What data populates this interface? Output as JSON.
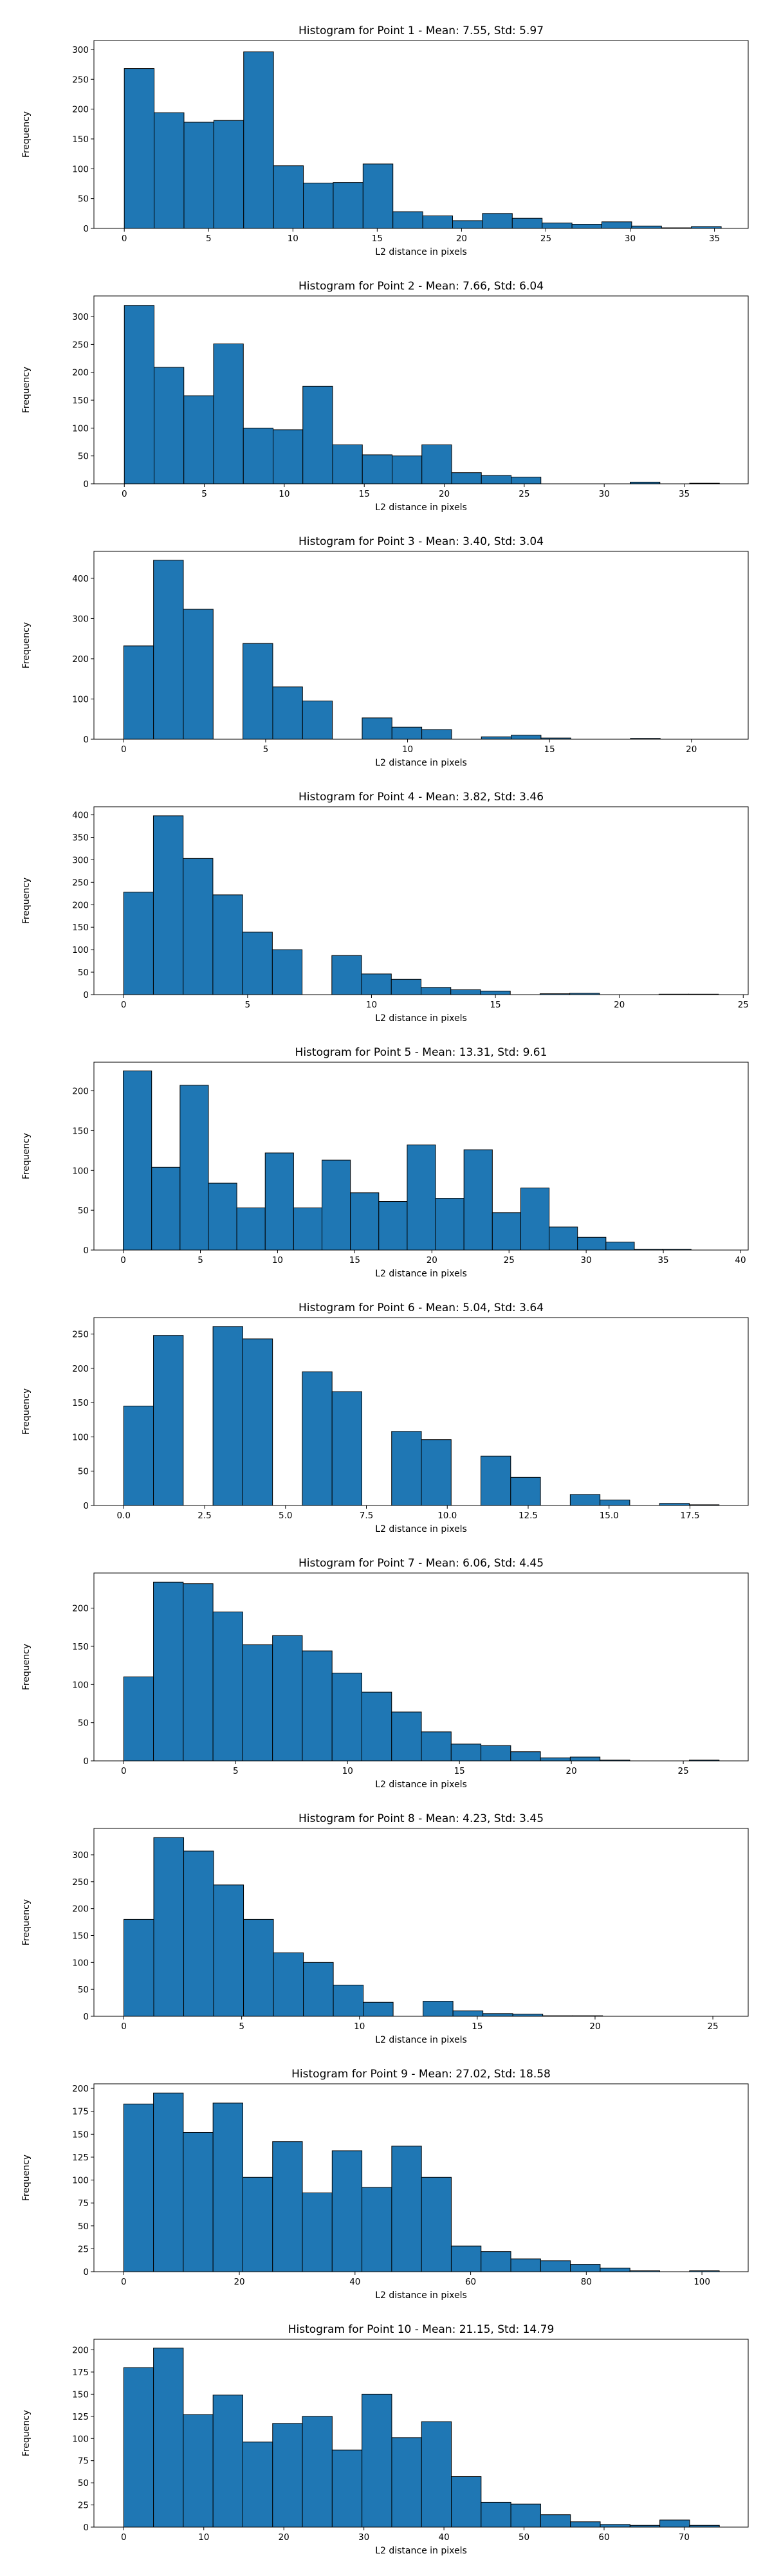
{
  "chart_data": [
    {
      "type": "bar",
      "title": "Histogram for Point 1 - Mean: 7.55, Std: 5.97",
      "xlabel": "L2 distance in pixels",
      "ylabel": "Frequency",
      "bin_start": 0.0,
      "bin_width": 1.77,
      "values": [
        268,
        194,
        178,
        181,
        296,
        105,
        76,
        77,
        108,
        28,
        21,
        13,
        25,
        17,
        9,
        7,
        11,
        4,
        1,
        3
      ],
      "xlim": [
        -1.8,
        37.0
      ],
      "ylim": [
        0,
        315
      ],
      "xticks": [
        0,
        5,
        10,
        15,
        20,
        25,
        30,
        35
      ],
      "yticks": [
        0,
        50,
        100,
        150,
        200,
        250,
        300
      ],
      "xtick_labels": [
        "0",
        "5",
        "10",
        "15",
        "20",
        "25",
        "30",
        "35"
      ],
      "ytick_labels": [
        "0",
        "50",
        "100",
        "150",
        "200",
        "250",
        "300"
      ]
    },
    {
      "type": "bar",
      "title": "Histogram for Point 2 - Mean: 7.66, Std: 6.04",
      "xlabel": "L2 distance in pixels",
      "ylabel": "Frequency",
      "bin_start": 0.0,
      "bin_width": 1.86,
      "values": [
        320,
        209,
        158,
        251,
        100,
        97,
        175,
        70,
        52,
        50,
        70,
        20,
        15,
        12,
        0,
        0,
        0,
        3,
        0,
        1
      ],
      "xlim": [
        -1.9,
        39.0
      ],
      "ylim": [
        0,
        337
      ],
      "xticks": [
        0,
        5,
        10,
        15,
        20,
        25,
        30,
        35
      ],
      "yticks": [
        0,
        50,
        100,
        150,
        200,
        250,
        300
      ],
      "xtick_labels": [
        "0",
        "5",
        "10",
        "15",
        "20",
        "25",
        "30",
        "35"
      ],
      "ytick_labels": [
        "0",
        "50",
        "100",
        "150",
        "200",
        "250",
        "300"
      ]
    },
    {
      "type": "bar",
      "title": "Histogram for Point 3 - Mean: 3.40, Std: 3.04",
      "xlabel": "L2 distance in pixels",
      "ylabel": "Frequency",
      "bin_start": 0.0,
      "bin_width": 1.05,
      "values": [
        232,
        445,
        323,
        0,
        238,
        130,
        95,
        0,
        53,
        30,
        24,
        0,
        6,
        10,
        3,
        0,
        0,
        2,
        0,
        0
      ],
      "xlim": [
        -1.05,
        22.0
      ],
      "ylim": [
        0,
        467
      ],
      "xticks": [
        0,
        5,
        10,
        15,
        20
      ],
      "yticks": [
        0,
        100,
        200,
        300,
        400
      ],
      "xtick_labels": [
        "0",
        "5",
        "10",
        "15",
        "20"
      ],
      "ytick_labels": [
        "0",
        "100",
        "200",
        "300",
        "400"
      ]
    },
    {
      "type": "bar",
      "title": "Histogram for Point 4 - Mean: 3.82, Std: 3.46",
      "xlabel": "L2 distance in pixels",
      "ylabel": "Frequency",
      "bin_start": 0.0,
      "bin_width": 1.2,
      "values": [
        228,
        398,
        303,
        222,
        139,
        100,
        0,
        87,
        46,
        34,
        16,
        11,
        8,
        0,
        2,
        3,
        0,
        0,
        1,
        1
      ],
      "xlim": [
        -1.2,
        25.2
      ],
      "ylim": [
        0,
        418
      ],
      "xticks": [
        0,
        5,
        10,
        15,
        20,
        25
      ],
      "yticks": [
        0,
        50,
        100,
        150,
        200,
        250,
        300,
        350,
        400
      ],
      "xtick_labels": [
        "0",
        "5",
        "10",
        "15",
        "20",
        "25"
      ],
      "ytick_labels": [
        "0",
        "50",
        "100",
        "150",
        "200",
        "250",
        "300",
        "350",
        "400"
      ]
    },
    {
      "type": "bar",
      "title": "Histogram for Point 5 - Mean: 13.31, Std: 9.61",
      "xlabel": "L2 distance in pixels",
      "ylabel": "Frequency",
      "bin_start": 0.0,
      "bin_width": 1.84,
      "values": [
        225,
        104,
        207,
        84,
        53,
        122,
        53,
        113,
        72,
        61,
        132,
        65,
        126,
        47,
        78,
        29,
        16,
        10,
        1,
        1
      ],
      "xlim": [
        -1.9,
        40.5
      ],
      "ylim": [
        0,
        236
      ],
      "xticks": [
        0,
        5,
        10,
        15,
        20,
        25,
        30,
        35,
        40
      ],
      "yticks": [
        0,
        50,
        100,
        150,
        200
      ],
      "xtick_labels": [
        "0",
        "5",
        "10",
        "15",
        "20",
        "25",
        "30",
        "35",
        "40"
      ],
      "ytick_labels": [
        "0",
        "50",
        "100",
        "150",
        "200"
      ]
    },
    {
      "type": "bar",
      "title": "Histogram for Point 6 - Mean: 5.04, Std: 3.64",
      "xlabel": "L2 distance in pixels",
      "ylabel": "Frequency",
      "bin_start": 0.0,
      "bin_width": 0.92,
      "values": [
        145,
        248,
        0,
        261,
        243,
        0,
        195,
        166,
        0,
        108,
        96,
        0,
        72,
        41,
        0,
        16,
        8,
        0,
        3,
        1
      ],
      "xlim": [
        -0.92,
        19.3
      ],
      "ylim": [
        0,
        274
      ],
      "xticks": [
        0,
        2.5,
        5,
        7.5,
        10,
        12.5,
        15,
        17.5
      ],
      "yticks": [
        0,
        50,
        100,
        150,
        200,
        250
      ],
      "xtick_labels": [
        "0.0",
        "2.5",
        "5.0",
        "7.5",
        "10.0",
        "12.5",
        "15.0",
        "17.5"
      ],
      "ytick_labels": [
        "0",
        "50",
        "100",
        "150",
        "200",
        "250"
      ]
    },
    {
      "type": "bar",
      "title": "Histogram for Point 7 - Mean: 6.06, Std: 4.45",
      "xlabel": "L2 distance in pixels",
      "ylabel": "Frequency",
      "bin_start": 0.0,
      "bin_width": 1.33,
      "values": [
        110,
        234,
        232,
        195,
        152,
        164,
        144,
        115,
        90,
        64,
        38,
        22,
        20,
        12,
        4,
        5,
        1,
        0,
        0,
        1
      ],
      "xlim": [
        -1.33,
        27.9
      ],
      "ylim": [
        0,
        246
      ],
      "xticks": [
        0,
        5,
        10,
        15,
        20,
        25
      ],
      "yticks": [
        0,
        50,
        100,
        150,
        200
      ],
      "xtick_labels": [
        "0",
        "5",
        "10",
        "15",
        "20",
        "25"
      ],
      "ytick_labels": [
        "0",
        "50",
        "100",
        "150",
        "200"
      ]
    },
    {
      "type": "bar",
      "title": "Histogram for Point 8 - Mean: 4.23, Std: 3.45",
      "xlabel": "L2 distance in pixels",
      "ylabel": "Frequency",
      "bin_start": 0.0,
      "bin_width": 1.27,
      "values": [
        180,
        332,
        307,
        244,
        180,
        118,
        100,
        58,
        26,
        0,
        28,
        10,
        5,
        4,
        1,
        1,
        0,
        0,
        0,
        0
      ],
      "xlim": [
        -1.27,
        26.5
      ],
      "ylim": [
        0,
        349
      ],
      "xticks": [
        0,
        5,
        10,
        15,
        20,
        25
      ],
      "yticks": [
        0,
        50,
        100,
        150,
        200,
        250,
        300
      ],
      "xtick_labels": [
        "0",
        "5",
        "10",
        "15",
        "20",
        "25"
      ],
      "ytick_labels": [
        "0",
        "50",
        "100",
        "150",
        "200",
        "250",
        "300"
      ]
    },
    {
      "type": "bar",
      "title": "Histogram for Point 9 - Mean: 27.02, Std: 18.58",
      "xlabel": "L2 distance in pixels",
      "ylabel": "Frequency",
      "bin_start": 0.0,
      "bin_width": 5.15,
      "values": [
        183,
        195,
        152,
        184,
        103,
        142,
        86,
        132,
        92,
        137,
        103,
        28,
        22,
        14,
        12,
        8,
        4,
        1,
        0,
        1
      ],
      "xlim": [
        -5.15,
        108.0
      ],
      "ylim": [
        0,
        205
      ],
      "xticks": [
        0,
        20,
        40,
        60,
        80,
        100
      ],
      "yticks": [
        0,
        25,
        50,
        75,
        100,
        125,
        150,
        175,
        200
      ],
      "xtick_labels": [
        "0",
        "20",
        "40",
        "60",
        "80",
        "100"
      ],
      "ytick_labels": [
        "0",
        "25",
        "50",
        "75",
        "100",
        "125",
        "150",
        "175",
        "200"
      ]
    },
    {
      "type": "bar",
      "title": "Histogram for Point 10 - Mean: 21.15, Std: 14.79",
      "xlabel": "L2 distance in pixels",
      "ylabel": "Frequency",
      "bin_start": 0.0,
      "bin_width": 3.72,
      "values": [
        180,
        202,
        127,
        149,
        96,
        117,
        125,
        87,
        150,
        101,
        119,
        57,
        28,
        26,
        14,
        6,
        3,
        2,
        8,
        2
      ],
      "xlim": [
        -3.72,
        78.0
      ],
      "ylim": [
        0,
        212
      ],
      "xticks": [
        0,
        10,
        20,
        30,
        40,
        50,
        60,
        70
      ],
      "yticks": [
        0,
        25,
        50,
        75,
        100,
        125,
        150,
        175,
        200
      ],
      "xtick_labels": [
        "0",
        "10",
        "20",
        "30",
        "40",
        "50",
        "60",
        "70"
      ],
      "ytick_labels": [
        "0",
        "25",
        "50",
        "75",
        "100",
        "125",
        "150",
        "175",
        "200"
      ]
    }
  ],
  "colors": {
    "bar_fill": "#1f77b4",
    "bar_edge": "#000000",
    "axis": "#000000",
    "background": "#ffffff"
  }
}
